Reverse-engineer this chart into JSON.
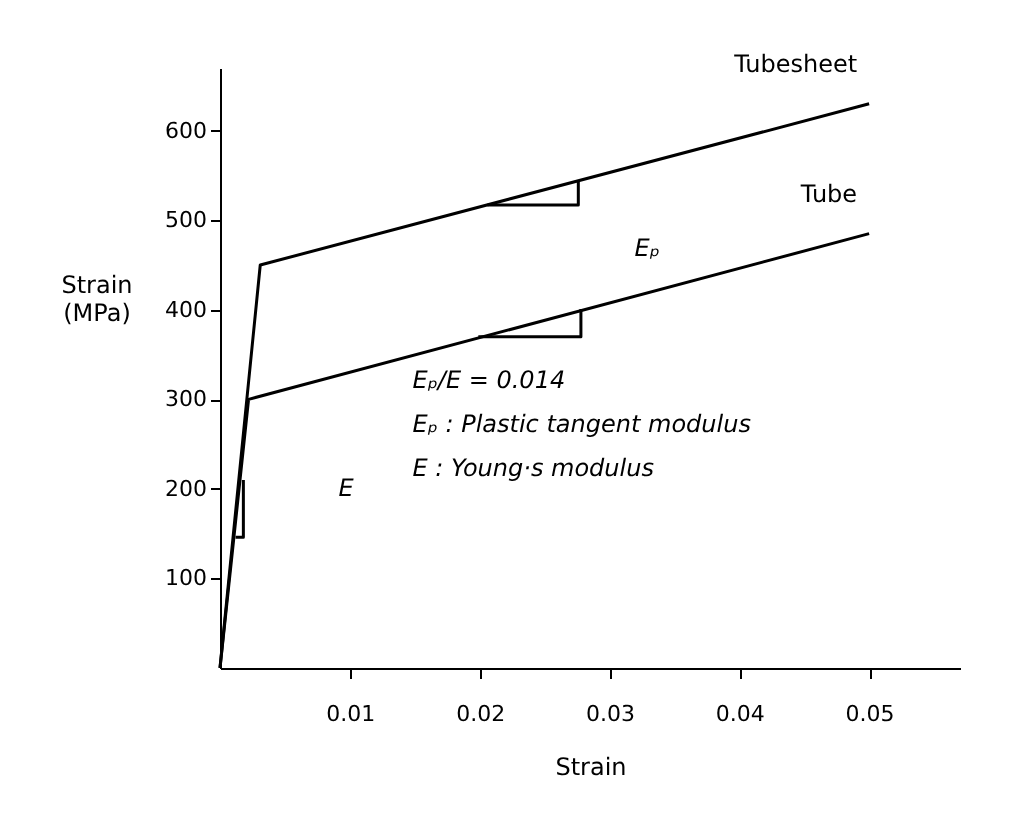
{
  "chart_data": {
    "type": "line",
    "xlabel": "Strain",
    "ylabel": "Strain\n(MPa)",
    "xlim": [
      0,
      0.057
    ],
    "ylim": [
      0,
      670
    ],
    "xticks": [
      {
        "value": 0.01,
        "label": "0.01"
      },
      {
        "value": 0.02,
        "label": "0.02"
      },
      {
        "value": 0.03,
        "label": "0.03"
      },
      {
        "value": 0.04,
        "label": "0.04"
      },
      {
        "value": 0.05,
        "label": "0.05"
      }
    ],
    "yticks": [
      100,
      200,
      300,
      400,
      500,
      600
    ],
    "grid": false,
    "marker": "none",
    "line_style": "solid",
    "series": [
      {
        "name": "Tubesheet",
        "color": "#000000",
        "x": [
          0,
          0.0031,
          0.05
        ],
        "values": [
          0,
          450,
          630
        ]
      },
      {
        "name": "Tube",
        "color": "#000000",
        "x": [
          0,
          0.0022,
          0.05
        ],
        "values": [
          0,
          300,
          485
        ]
      },
      {
        "color": "#000000",
        "x": [
          0.0206,
          0.0276,
          0.0276
        ],
        "values": [
          517,
          517,
          545
        ]
      },
      {
        "color": "#000000",
        "x": [
          0.0199,
          0.0278,
          0.0278
        ],
        "values": [
          370,
          370,
          401
        ]
      },
      {
        "color": "#000000",
        "x": [
          0.0012,
          0.0018,
          0.0018
        ],
        "values": [
          146,
          146,
          210
        ]
      }
    ],
    "annotations": [
      "Eₚ",
      "E",
      "Eₚ/E = 0.014",
      "Eₚ : Plastic tangent modulus",
      "E   : Young·s modulus"
    ]
  }
}
